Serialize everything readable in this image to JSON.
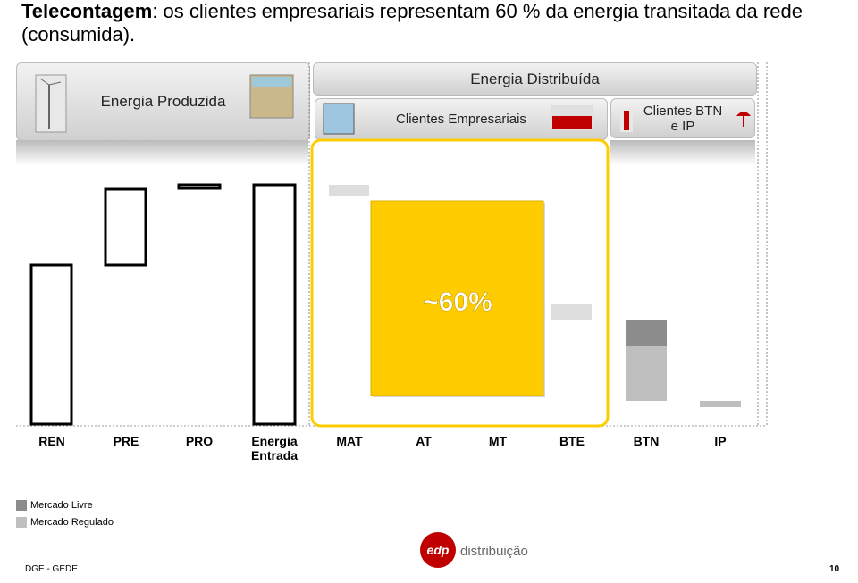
{
  "title": {
    "bold": "Telecontagem",
    "rest": ": os clientes empresariais representam 60 % da energia transitada da rede (consumida)."
  },
  "headers": {
    "produced": "Energia Produzida",
    "distributed": "Energia Distribuída",
    "business": "Clientes Empresariais",
    "btn_ip": "Clientes BTN e IP"
  },
  "highlight": "~60%",
  "categories": [
    "REN",
    "PRE",
    "PRO",
    "Energia Entrada",
    "MAT",
    "AT",
    "MT",
    "BTE",
    "BTN",
    "IP"
  ],
  "legend": [
    "Mercado Livre",
    "Mercado Regulado"
  ],
  "footer": {
    "left": "DGE - GEDE",
    "page": "10",
    "logo_mark": "edp",
    "logo_text": "distribuição"
  }
}
